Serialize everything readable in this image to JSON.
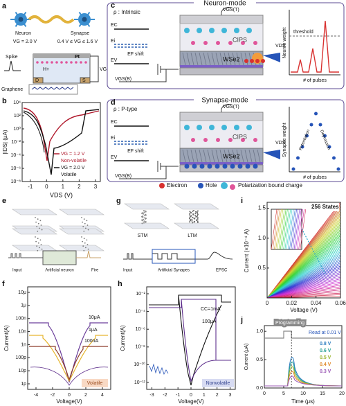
{
  "panels": {
    "a": {
      "label": "a",
      "neuron": "Neuron",
      "synapse": "Synapse",
      "vg_neuron": "VG = 2.0 V",
      "vg_synapse": "0.4 V ≤ VG ≤ 1.6 V",
      "spike": "Spike",
      "pt": "Pt",
      "proton": "H+",
      "drain": "D",
      "source": "S",
      "gate": "VG",
      "graphene": "Graphene"
    },
    "b": {
      "label": "b",
      "y_label": "|IDS| (μA)",
      "x_label": "VDS (V)",
      "yticks": [
        "10⁴",
        "10²",
        "10⁰",
        "10⁻²",
        "10⁻⁴",
        "10⁻⁶",
        "10⁻⁸"
      ],
      "xticks": [
        -1,
        0,
        1,
        2,
        3
      ],
      "xlim": [
        -1.5,
        3.3
      ],
      "legend": [
        {
          "text": "VG = 1.2 V",
          "color": "#b0182b"
        },
        {
          "text": "Non-volatile",
          "color": "#b0182b"
        },
        {
          "text": "VG = 2.0 V",
          "color": "#111111"
        },
        {
          "text": "Volatile",
          "color": "#111111"
        }
      ]
    },
    "c": {
      "label": "c",
      "title": "Neuron-mode",
      "rho": "ρ : Intrinsic",
      "ec": "EC",
      "ei": "Ei",
      "ef_shift": "EF shift",
      "ev": "EV",
      "vgs_top": "VGS(T)",
      "vgs_bottom": "VGS(B)",
      "cips": "CIPS",
      "wse2": "WSe2",
      "vds": "VDS",
      "threshold": "threshold",
      "y_label": "Neuron weight",
      "x_label": "# of pulses"
    },
    "d": {
      "label": "d",
      "title": "Synapse-mode",
      "rho": "ρ : P-type",
      "ec": "EC",
      "ei": "Ei",
      "ef_shift": "EF shift",
      "ev": "EV",
      "vgs_top": "VGS(T)",
      "vgs_bottom": "VGS(B)",
      "cips": "CIPS",
      "wse2": "WSe2",
      "vds": "VDS",
      "potentiation": "Potentiation",
      "depression": "Depression",
      "y_label": "Synapse weight",
      "x_label": "# of pulses"
    },
    "legend": {
      "electron": "Electron",
      "hole": "Hole",
      "polarization": "Polarization bound charge"
    },
    "e": {
      "label": "e",
      "input": "Input",
      "neuron": "Artificial neuron",
      "fire": "Fire"
    },
    "g": {
      "label": "g",
      "stm": "STM",
      "ltm": "LTM",
      "input": "Input",
      "synapses": "Artificial Synapes",
      "epsc": "EPSC"
    },
    "i": {
      "label": "i",
      "states": "256 States",
      "y_label": "Current (×10⁻⁴ A)",
      "x_label": "Voltage (V)",
      "yticks": [
        "0.5",
        "1.0",
        "1.5"
      ],
      "xticks": [
        "0",
        "0.02",
        "0.04",
        "0.06"
      ],
      "ylim": [
        0,
        1.6
      ],
      "xlim": [
        0,
        0.06
      ]
    },
    "f": {
      "label": "f",
      "yticks": [
        "10μ",
        "1μ",
        "100n",
        "10n",
        "1n",
        "100p",
        "10p",
        "1p"
      ],
      "xticks": [
        -4,
        -2,
        0,
        2,
        4
      ],
      "xlim": [
        -5,
        5
      ],
      "y_label": "Current(A)",
      "x_label": "Voltage(V)",
      "cc1": "10μA",
      "cc2": "1μA",
      "cc3": "100nA",
      "mode": "Volatile"
    },
    "h": {
      "label": "h",
      "yticks": [
        "10⁻²",
        "10⁻⁴",
        "10⁻⁶",
        "10⁻⁸",
        "10⁻¹⁰",
        "10⁻¹²"
      ],
      "xticks": [
        -3,
        -2,
        -1,
        0,
        1,
        2,
        3
      ],
      "xlim": [
        -3.4,
        3.4
      ],
      "y_label": "Current(A)",
      "x_label": "Voltage(V)",
      "cc1": "CC=1mA",
      "cc2": "100μA",
      "mode": "Nonvolatile"
    },
    "j": {
      "label": "j",
      "programming": "Programming",
      "read": "Read at 0.01 V",
      "yticks": [
        "0.0",
        "0.5",
        "1.0"
      ],
      "ylim": [
        0,
        1.1
      ],
      "xticks": [
        0,
        5,
        10,
        15,
        20
      ],
      "xlim": [
        0,
        20
      ],
      "y_label": "Current (μA)",
      "x_label": "Time (μs)",
      "series": [
        {
          "name": "0.8 V",
          "color": "#2f7fc1"
        },
        {
          "name": "0.6 V",
          "color": "#2aa198"
        },
        {
          "name": "0.5 V",
          "color": "#9bb52f"
        },
        {
          "name": "0.4 V",
          "color": "#e08a2b"
        },
        {
          "name": "0.3 V",
          "color": "#9b59b6"
        }
      ]
    }
  }
}
